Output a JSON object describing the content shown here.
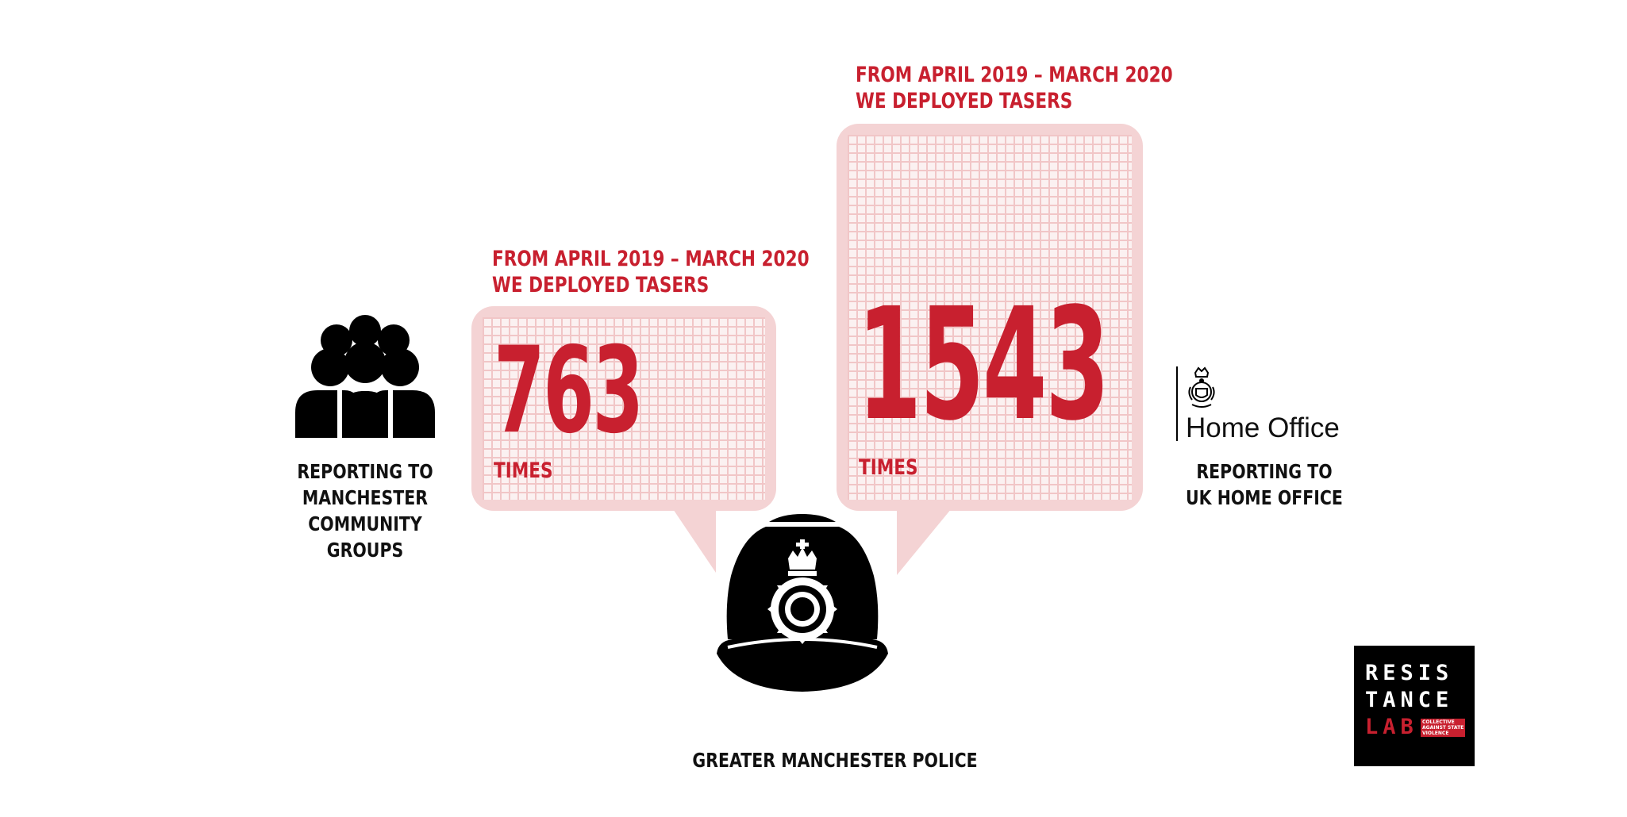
{
  "community": {
    "caption_lines": [
      "REPORTING TO",
      "MANCHESTER",
      "COMMUNITY GROUPS"
    ],
    "icon": "people-group-icon"
  },
  "left_bubble": {
    "heading_lines": [
      "FROM APRIL 2019 – MARCH 2020",
      "WE DEPLOYED TASERS"
    ],
    "number": "763",
    "unit": "TIMES"
  },
  "right_bubble": {
    "heading_lines": [
      "FROM APRIL 2019 – MARCH 2020",
      "WE DEPLOYED TASERS"
    ],
    "number": "1543",
    "unit": "TIMES"
  },
  "home_office": {
    "logo_text": "Home Office",
    "caption_lines": [
      "REPORTING TO",
      "UK HOME OFFICE"
    ],
    "icon": "royal-crest-icon"
  },
  "police": {
    "caption": "GREATER MANCHESTER POLICE",
    "icon": "police-helmet-icon"
  },
  "resistance_lab": {
    "rows": [
      "RESIS",
      "TANCE",
      "LAB"
    ],
    "tagline": [
      "COLLECTIVE",
      "AGAINST STATE",
      "VIOLENCE"
    ]
  },
  "colors": {
    "accent_red": "#c8202f",
    "bubble_pink": "#f4d3d4",
    "text_black": "#111111"
  }
}
